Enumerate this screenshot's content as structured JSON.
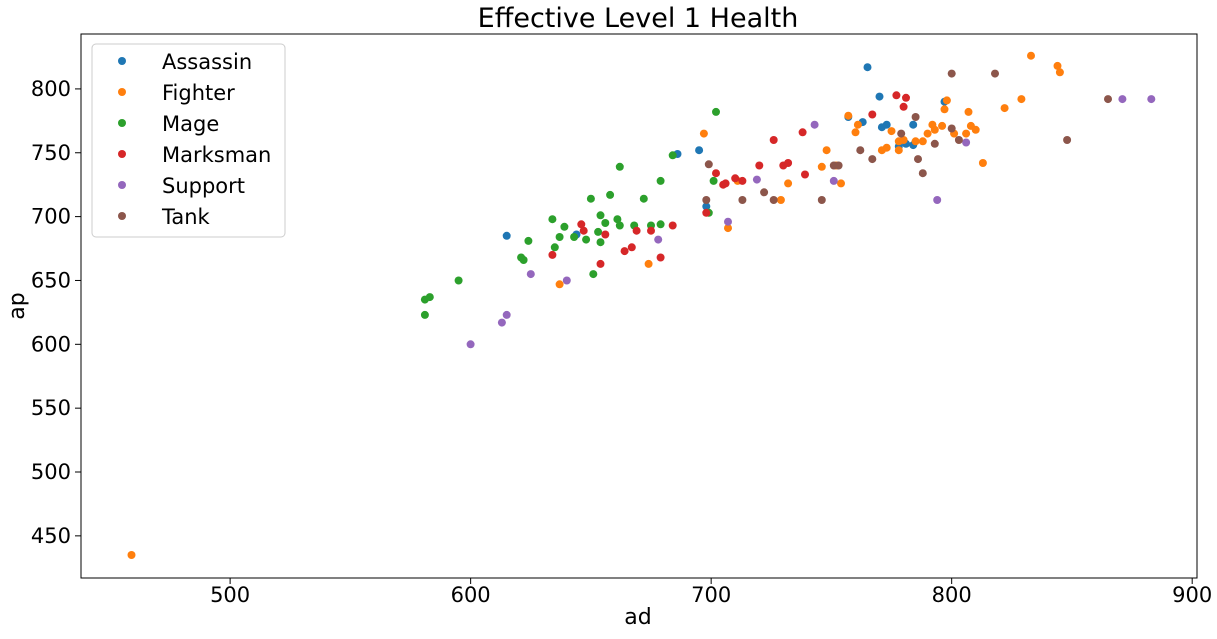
{
  "chart_data": {
    "type": "scatter",
    "title": "Effective Level 1 Health",
    "xlabel": "ad",
    "ylabel": "ap",
    "xlim": [
      438,
      902
    ],
    "ylim": [
      417,
      843
    ],
    "xticks": [
      500,
      600,
      700,
      800,
      900
    ],
    "yticks": [
      450,
      500,
      550,
      600,
      650,
      700,
      750,
      800
    ],
    "grid": false,
    "legend_position": "top-left",
    "series": [
      {
        "name": "Assassin",
        "color": "#1f77b4",
        "points": [
          [
            615,
            685
          ],
          [
            644,
            686
          ],
          [
            686,
            749
          ],
          [
            695,
            752
          ],
          [
            698,
            708
          ],
          [
            757,
            778
          ],
          [
            763,
            774
          ],
          [
            765,
            817
          ],
          [
            770,
            794
          ],
          [
            771,
            770
          ],
          [
            773,
            772
          ],
          [
            778,
            755
          ],
          [
            781,
            757
          ],
          [
            784,
            756
          ],
          [
            784,
            772
          ],
          [
            797,
            790
          ]
        ]
      },
      {
        "name": "Fighter",
        "color": "#ff7f0e",
        "points": [
          [
            459,
            435
          ],
          [
            637,
            647
          ],
          [
            674,
            663
          ],
          [
            697,
            765
          ],
          [
            707,
            691
          ],
          [
            711,
            728
          ],
          [
            729,
            713
          ],
          [
            732,
            726
          ],
          [
            746,
            739
          ],
          [
            748,
            752
          ],
          [
            752,
            740
          ],
          [
            754,
            726
          ],
          [
            757,
            779
          ],
          [
            760,
            766
          ],
          [
            761,
            772
          ],
          [
            771,
            752
          ],
          [
            773,
            754
          ],
          [
            775,
            767
          ],
          [
            778,
            752
          ],
          [
            778,
            759
          ],
          [
            780,
            760
          ],
          [
            785,
            759
          ],
          [
            788,
            759
          ],
          [
            790,
            765
          ],
          [
            792,
            772
          ],
          [
            793,
            768
          ],
          [
            796,
            771
          ],
          [
            797,
            784
          ],
          [
            798,
            791
          ],
          [
            801,
            765
          ],
          [
            806,
            765
          ],
          [
            807,
            782
          ],
          [
            808,
            771
          ],
          [
            810,
            768
          ],
          [
            813,
            742
          ],
          [
            822,
            785
          ],
          [
            829,
            792
          ],
          [
            833,
            826
          ],
          [
            844,
            818
          ],
          [
            845,
            813
          ]
        ]
      },
      {
        "name": "Mage",
        "color": "#2ca02c",
        "points": [
          [
            581,
            635
          ],
          [
            581,
            623
          ],
          [
            583,
            637
          ],
          [
            595,
            650
          ],
          [
            621,
            668
          ],
          [
            622,
            666
          ],
          [
            624,
            681
          ],
          [
            634,
            698
          ],
          [
            635,
            676
          ],
          [
            637,
            684
          ],
          [
            639,
            692
          ],
          [
            643,
            684
          ],
          [
            648,
            682
          ],
          [
            650,
            714
          ],
          [
            651,
            655
          ],
          [
            654,
            701
          ],
          [
            653,
            688
          ],
          [
            654,
            680
          ],
          [
            656,
            695
          ],
          [
            658,
            717
          ],
          [
            661,
            698
          ],
          [
            662,
            739
          ],
          [
            668,
            693
          ],
          [
            672,
            714
          ],
          [
            675,
            693
          ],
          [
            679,
            728
          ],
          [
            679,
            694
          ],
          [
            684,
            748
          ],
          [
            699,
            703
          ],
          [
            701,
            728
          ],
          [
            702,
            782
          ],
          [
            662,
            693
          ]
        ]
      },
      {
        "name": "Marksman",
        "color": "#d62728",
        "points": [
          [
            634,
            670
          ],
          [
            646,
            694
          ],
          [
            647,
            689
          ],
          [
            654,
            663
          ],
          [
            656,
            686
          ],
          [
            664,
            673
          ],
          [
            667,
            676
          ],
          [
            669,
            689
          ],
          [
            675,
            689
          ],
          [
            679,
            668
          ],
          [
            684,
            693
          ],
          [
            698,
            703
          ],
          [
            702,
            734
          ],
          [
            705,
            725
          ],
          [
            706,
            726
          ],
          [
            710,
            730
          ],
          [
            713,
            728
          ],
          [
            720,
            740
          ],
          [
            726,
            760
          ],
          [
            730,
            740
          ],
          [
            732,
            742
          ],
          [
            738,
            766
          ],
          [
            739,
            733
          ],
          [
            767,
            780
          ],
          [
            777,
            795
          ],
          [
            780,
            786
          ],
          [
            781,
            793
          ]
        ]
      },
      {
        "name": "Support",
        "color": "#9467bd",
        "points": [
          [
            600,
            600
          ],
          [
            613,
            617
          ],
          [
            615,
            623
          ],
          [
            625,
            655
          ],
          [
            640,
            650
          ],
          [
            678,
            682
          ],
          [
            707,
            696
          ],
          [
            719,
            729
          ],
          [
            743,
            772
          ],
          [
            751,
            728
          ],
          [
            794,
            713
          ],
          [
            806,
            758
          ],
          [
            871,
            792
          ],
          [
            883,
            792
          ]
        ]
      },
      {
        "name": "Tank",
        "color": "#8c564b",
        "points": [
          [
            698,
            713
          ],
          [
            699,
            741
          ],
          [
            713,
            713
          ],
          [
            722,
            719
          ],
          [
            726,
            713
          ],
          [
            746,
            713
          ],
          [
            751,
            740
          ],
          [
            753,
            740
          ],
          [
            762,
            752
          ],
          [
            767,
            745
          ],
          [
            779,
            765
          ],
          [
            785,
            778
          ],
          [
            786,
            745
          ],
          [
            788,
            734
          ],
          [
            793,
            757
          ],
          [
            800,
            769
          ],
          [
            800,
            812
          ],
          [
            803,
            760
          ],
          [
            818,
            812
          ],
          [
            848,
            760
          ],
          [
            865,
            792
          ]
        ]
      }
    ]
  }
}
